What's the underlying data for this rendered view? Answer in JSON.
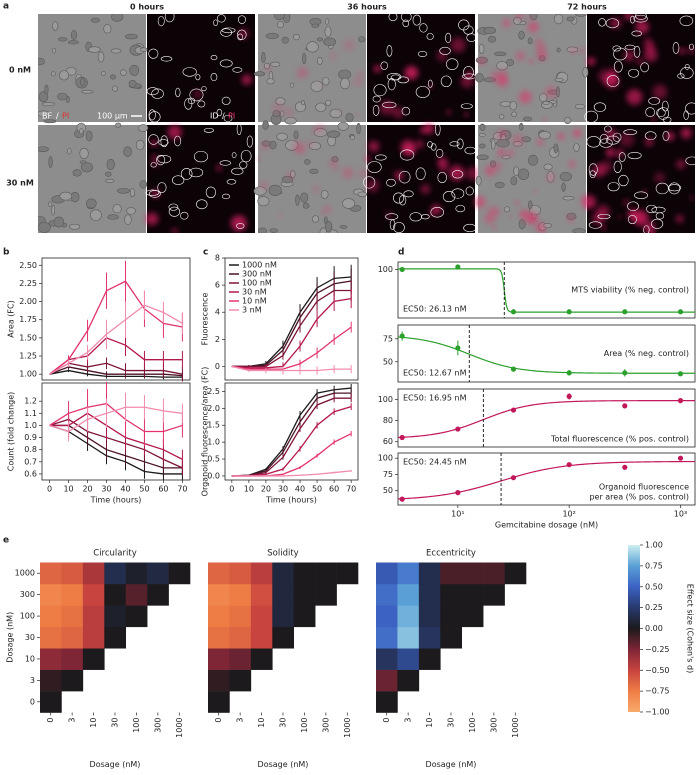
{
  "image_grid": {
    "panel_label": "a",
    "column_titles": [
      "0 hours",
      "36 hours",
      "72 hours"
    ],
    "row_titles": [
      "0 nM",
      "30 nM"
    ],
    "bf_label": [
      "BF",
      "/",
      "PI"
    ],
    "id_label": [
      "ID",
      "/",
      "PI"
    ],
    "scale_bar": "100 µm"
  },
  "chart_data": [
    {
      "type": "line",
      "panel_label": "b",
      "ylabel": "Area (FC)",
      "x": [
        0,
        10,
        20,
        30,
        40,
        50,
        60,
        70
      ],
      "xlim": [
        -4,
        74
      ],
      "ylim": [
        0.92,
        2.6
      ],
      "yticks": [
        {
          "value": 1,
          "label": "1.00"
        },
        {
          "value": 1.25,
          "label": "1.25"
        },
        {
          "value": 1.5,
          "label": "1.50"
        },
        {
          "value": 1.75,
          "label": "1.75"
        },
        {
          "value": 2,
          "label": "2.00"
        },
        {
          "value": 2.25,
          "label": "2.25"
        },
        {
          "value": 2.5,
          "label": "2.50"
        }
      ],
      "series": [
        {
          "color": "#1a1a1a",
          "values": [
            1,
            1.05,
            1,
            0.97,
            0.97,
            0.97,
            0.96,
            0.96
          ],
          "errors": [
            0,
            0.02,
            0.03,
            0.03,
            0.03,
            0.03,
            0.03,
            0.03
          ]
        },
        {
          "color": "#4a1226",
          "values": [
            1,
            1.1,
            1.05,
            1,
            1,
            1,
            1,
            0.98
          ],
          "errors": [
            0,
            0.03,
            0.04,
            0.04,
            0.04,
            0.04,
            0.05,
            0.05
          ]
        },
        {
          "color": "#7d1538",
          "values": [
            1,
            1.15,
            1.1,
            1.15,
            1.05,
            1.05,
            1.05,
            1
          ],
          "errors": [
            0,
            0.04,
            0.06,
            0.08,
            0.1,
            0.1,
            0.1,
            0.1
          ]
        },
        {
          "color": "#b3174d",
          "values": [
            1,
            1.2,
            1.25,
            1.5,
            1.4,
            1.2,
            1.2,
            1.2
          ],
          "errors": [
            0,
            0.05,
            0.1,
            0.15,
            0.15,
            0.12,
            0.12,
            0.12
          ]
        },
        {
          "color": "#e2336f",
          "values": [
            1,
            1.2,
            1.6,
            2.15,
            2.28,
            1.9,
            1.7,
            1.65
          ],
          "errors": [
            0,
            0.06,
            0.15,
            0.25,
            0.28,
            0.25,
            0.2,
            0.2
          ]
        },
        {
          "color": "#f28cab",
          "values": [
            1,
            1.15,
            1.3,
            1.55,
            1.75,
            1.95,
            1.85,
            1.7
          ],
          "errors": [
            0,
            0.05,
            0.1,
            0.2,
            0.25,
            0.2,
            0.15,
            0.15
          ]
        }
      ]
    },
    {
      "type": "line",
      "ylabel": "Count (fold change)",
      "xlabel": "Time (hours)",
      "x": [
        0,
        10,
        20,
        30,
        40,
        50,
        60,
        70
      ],
      "xlim": [
        -4,
        74
      ],
      "xticks": [
        0,
        10,
        20,
        30,
        40,
        50,
        60,
        70
      ],
      "ylim": [
        0.55,
        1.35
      ],
      "yticks": [
        0.6,
        0.7,
        0.8,
        0.9,
        {
          "value": 1,
          "label": "1.0"
        },
        1.1,
        1.2
      ],
      "series": [
        {
          "color": "#1a1a1a",
          "values": [
            1,
            0.95,
            0.85,
            0.75,
            0.7,
            0.62,
            0.6,
            0.6
          ],
          "errors": [
            0,
            0.05,
            0.06,
            0.07,
            0.07,
            0.06,
            0.05,
            0.05
          ]
        },
        {
          "color": "#4a1226",
          "values": [
            1,
            1,
            0.9,
            0.8,
            0.75,
            0.7,
            0.65,
            0.65
          ],
          "errors": [
            0,
            0.06,
            0.07,
            0.08,
            0.08,
            0.07,
            0.06,
            0.06
          ]
        },
        {
          "color": "#7d1538",
          "values": [
            1,
            1.05,
            0.95,
            0.9,
            0.85,
            0.8,
            0.72,
            0.65
          ],
          "errors": [
            0,
            0.06,
            0.08,
            0.09,
            0.09,
            0.08,
            0.07,
            0.06
          ]
        },
        {
          "color": "#b3174d",
          "values": [
            1,
            1,
            1.1,
            1,
            0.9,
            0.85,
            0.8,
            0.72
          ],
          "errors": [
            0,
            0.08,
            0.12,
            0.12,
            0.1,
            0.1,
            0.09,
            0.08
          ]
        },
        {
          "color": "#e2336f",
          "values": [
            1,
            1.1,
            1.15,
            1.18,
            1.05,
            0.95,
            0.95,
            1
          ],
          "errors": [
            0,
            0.1,
            0.15,
            0.18,
            0.15,
            0.12,
            0.12,
            0.1
          ]
        },
        {
          "color": "#f28cab",
          "values": [
            1,
            0.95,
            1.05,
            1.1,
            1.15,
            1.15,
            1.12,
            1.1
          ],
          "errors": [
            0,
            0.08,
            0.1,
            0.12,
            0.12,
            0.1,
            0.1,
            0.08
          ]
        }
      ]
    },
    {
      "type": "line",
      "panel_label": "c",
      "ylabel": "Fluorescence",
      "x": [
        0,
        10,
        20,
        30,
        40,
        50,
        60,
        70
      ],
      "xlim": [
        -4,
        74
      ],
      "ylim": [
        -1,
        8
      ],
      "yticks": [
        0,
        2,
        4,
        6,
        8
      ],
      "legend": "upper left",
      "series": [
        {
          "name": "1000 nM",
          "color": "#1a1a1a",
          "values": [
            0,
            0,
            0.2,
            1.5,
            4,
            5.8,
            6.5,
            6.6
          ],
          "errors": [
            0,
            0.1,
            0.2,
            0.4,
            0.6,
            0.8,
            0.9,
            0.9
          ]
        },
        {
          "name": "300 nM",
          "color": "#4a1226",
          "values": [
            0,
            0,
            0.1,
            1.2,
            3.6,
            5.4,
            6.1,
            6.3
          ],
          "errors": [
            0,
            0.1,
            0.2,
            0.4,
            0.6,
            0.8,
            0.9,
            0.9
          ]
        },
        {
          "name": "100 nM",
          "color": "#7d1538",
          "values": [
            0,
            0,
            0,
            0.8,
            3,
            4.8,
            5.6,
            5.6
          ],
          "errors": [
            0,
            0.1,
            0.2,
            0.3,
            0.5,
            0.7,
            0.8,
            0.8
          ]
        },
        {
          "name": "30 nM",
          "color": "#b3174d",
          "values": [
            0,
            -0.1,
            -0.1,
            0,
            1.5,
            3.5,
            4.8,
            5
          ],
          "errors": [
            0,
            0.1,
            0.2,
            0.3,
            0.4,
            0.6,
            0.7,
            0.7
          ]
        },
        {
          "name": "10 nM",
          "color": "#e2336f",
          "values": [
            0,
            -0.2,
            -0.2,
            -0.2,
            0.2,
            1,
            2,
            2.9
          ],
          "errors": [
            0,
            0.1,
            0.1,
            0.2,
            0.3,
            0.4,
            0.4,
            0.4
          ]
        },
        {
          "name": "3 nM",
          "color": "#f28cab",
          "values": [
            0,
            -0.3,
            -0.3,
            -0.3,
            -0.3,
            -0.3,
            -0.2,
            -0.2
          ],
          "errors": [
            0,
            0.1,
            0.2,
            0.3,
            0.3,
            0.3,
            0.3,
            0.3
          ]
        }
      ]
    },
    {
      "type": "line",
      "ylabel": "Organoid fluorescence/area (FC)",
      "xlabel": "Time (hours)",
      "x": [
        0,
        10,
        20,
        30,
        40,
        50,
        60,
        70
      ],
      "xlim": [
        -4,
        74
      ],
      "xticks": [
        0,
        10,
        20,
        30,
        40,
        50,
        60,
        70
      ],
      "ylim": [
        -0.12,
        2.75
      ],
      "yticks": [
        {
          "value": 0,
          "label": "0.0"
        },
        0.5,
        {
          "value": 1,
          "label": "1.0"
        },
        1.5,
        {
          "value": 2,
          "label": "2.0"
        },
        2.5
      ],
      "series": [
        {
          "color": "#1a1a1a",
          "values": [
            0,
            0.02,
            0.2,
            0.8,
            1.8,
            2.45,
            2.55,
            2.6
          ],
          "errors": [
            0,
            0.01,
            0.03,
            0.08,
            0.12,
            0.12,
            0.12,
            0.12
          ]
        },
        {
          "color": "#4a1226",
          "values": [
            0,
            0.02,
            0.15,
            0.7,
            1.6,
            2.3,
            2.45,
            2.45
          ],
          "errors": [
            0,
            0.01,
            0.03,
            0.08,
            0.12,
            0.12,
            0.12,
            0.12
          ]
        },
        {
          "color": "#7d1538",
          "values": [
            0,
            0.01,
            0.1,
            0.55,
            1.4,
            2.1,
            2.3,
            2.3
          ],
          "errors": [
            0,
            0.01,
            0.03,
            0.07,
            0.1,
            0.12,
            0.12,
            0.12
          ]
        },
        {
          "color": "#b3174d",
          "values": [
            0,
            0,
            0.05,
            0.2,
            0.8,
            1.5,
            1.9,
            2.05
          ],
          "errors": [
            0,
            0.01,
            0.02,
            0.05,
            0.08,
            0.1,
            0.1,
            0.1
          ]
        },
        {
          "color": "#e2336f",
          "values": [
            0,
            0,
            0,
            0.05,
            0.25,
            0.6,
            1,
            1.25
          ],
          "errors": [
            0,
            0.01,
            0.01,
            0.02,
            0.04,
            0.06,
            0.08,
            0.08
          ]
        },
        {
          "color": "#f28cab",
          "values": [
            0,
            0,
            0,
            0,
            0.02,
            0.05,
            0.1,
            0.15
          ],
          "errors": [
            0,
            0.01,
            0.01,
            0.01,
            0.02,
            0.02,
            0.03,
            0.03
          ]
        }
      ]
    },
    {
      "type": "dose_response",
      "panel_label": "d",
      "label": [
        "MTS viability (% neg. control)"
      ],
      "ec50_label": "EC50: 26.13 nM",
      "fit": {
        "start": 101,
        "end": 31.5,
        "ec50": 26.13,
        "hill": 40
      },
      "x": [
        3.16,
        10,
        31.6,
        100,
        316,
        1000
      ],
      "values": [
        100,
        104,
        32,
        32,
        32,
        32
      ],
      "errors": [
        4,
        1,
        1,
        1,
        1,
        1
      ],
      "color": "#2ca02c",
      "xscale": "log",
      "xlim": [
        2.9,
        1350
      ],
      "ylim": [
        22,
        112
      ],
      "yticks": [
        100
      ],
      "ec50_corner": "lower left",
      "label_corner": "right"
    },
    {
      "type": "dose_response",
      "label": [
        "Area (% neg. control)"
      ],
      "ec50_label": "EC50: 12.67 nM",
      "fit": {
        "start": 79,
        "end": 37.5,
        "ec50": 12.67,
        "hill": 2
      },
      "x": [
        3.16,
        10,
        31.6,
        100,
        316,
        1000
      ],
      "values": [
        78,
        65,
        42,
        38,
        38,
        37
      ],
      "errors": [
        5,
        8,
        2,
        3,
        4,
        2
      ],
      "color": "#2ca02c",
      "xscale": "log",
      "xlim": [
        2.9,
        1350
      ],
      "ylim": [
        28,
        90
      ],
      "yticks": [
        50,
        75
      ],
      "ec50_corner": "lower left",
      "label_corner": "right"
    },
    {
      "type": "dose_response",
      "label": [
        "Total fluorescence (% pos. control)"
      ],
      "ec50_label": "EC50: 16.95 nM",
      "fit": {
        "start": 63,
        "end": 99,
        "ec50": 16.95,
        "hill": 2
      },
      "x": [
        3.16,
        10,
        31.6,
        100,
        316,
        1000
      ],
      "values": [
        64,
        72,
        90,
        103,
        94,
        99
      ],
      "errors": [
        1,
        1,
        2,
        3,
        2,
        1
      ],
      "color": "#c2185b",
      "xscale": "log",
      "xlim": [
        2.9,
        1350
      ],
      "ylim": [
        55,
        110
      ],
      "yticks": [
        60,
        80,
        100
      ],
      "ec50_corner": "upper left",
      "label_corner": "lower right"
    },
    {
      "type": "dose_response",
      "label": [
        "Organoid fluorescence",
        "per area (% pos. control)"
      ],
      "ec50_label": "EC50: 24.45 nM",
      "fit": {
        "start": 35,
        "end": 95,
        "ec50": 24.45,
        "hill": 1.5
      },
      "x": [
        3.16,
        10,
        31.6,
        100,
        316,
        1000
      ],
      "values": [
        37,
        47,
        70,
        90,
        86,
        100
      ],
      "errors": [
        1,
        1,
        1,
        1,
        1,
        1
      ],
      "color": "#c2185b",
      "xscale": "log",
      "xlim": [
        2.9,
        1350
      ],
      "ylim": [
        28,
        108
      ],
      "yticks": [
        50,
        75,
        100
      ],
      "ec50_corner": "upper left",
      "label_corner": "lower right",
      "xlabel": "Gemcitabine dosage (nM)",
      "xticks": [
        {
          "value": 10,
          "label": "10¹"
        },
        {
          "value": 100,
          "label": "10²"
        },
        {
          "value": 1000,
          "label": "10³"
        }
      ]
    },
    {
      "type": "heatmap",
      "panel_label": "e",
      "title": "Circularity",
      "xlabel": "Dosage (nM)",
      "ylabel": "Dosage (nM)",
      "categories": [
        "0",
        "3",
        "10",
        "30",
        "100",
        "300",
        "1000"
      ],
      "matrix": [
        [
          0
        ],
        [
          -0.05,
          0
        ],
        [
          -0.3,
          -0.25,
          0
        ],
        [
          -0.7,
          -0.65,
          -0.45,
          0
        ],
        [
          -0.75,
          -0.7,
          -0.45,
          0.05,
          0
        ],
        [
          -0.8,
          -0.75,
          -0.5,
          0,
          -0.15,
          0
        ],
        [
          -0.65,
          -0.6,
          -0.4,
          0.15,
          0.05,
          0.12,
          0
        ]
      ]
    },
    {
      "type": "heatmap",
      "title": "Solidity",
      "xlabel": "Dosage (nM)",
      "categories": [
        "0",
        "3",
        "10",
        "30",
        "100",
        "300",
        "1000"
      ],
      "matrix": [
        [
          0
        ],
        [
          -0.05,
          0
        ],
        [
          -0.25,
          -0.2,
          0
        ],
        [
          -0.7,
          -0.65,
          -0.5,
          0
        ],
        [
          -0.75,
          -0.7,
          -0.5,
          0.1,
          0
        ],
        [
          -0.8,
          -0.75,
          -0.55,
          0.1,
          0,
          0
        ],
        [
          -0.65,
          -0.6,
          -0.45,
          0.1,
          0,
          0,
          0
        ]
      ]
    },
    {
      "type": "heatmap",
      "title": "Eccentricity",
      "xlabel": "Dosage (nM)",
      "categories": [
        "0",
        "3",
        "10",
        "30",
        "100",
        "300",
        "1000"
      ],
      "matrix": [
        [
          0
        ],
        [
          -0.2,
          0
        ],
        [
          0.2,
          0.35,
          0
        ],
        [
          0.55,
          0.85,
          0.2,
          0
        ],
        [
          0.5,
          0.8,
          0.15,
          0,
          0
        ],
        [
          0.55,
          0.75,
          0.15,
          0,
          0,
          0
        ],
        [
          0.45,
          0.6,
          0.15,
          -0.12,
          -0.12,
          -0.12,
          0
        ]
      ]
    },
    {
      "type": "colorbar",
      "label": "Effect size (Cohen's d)",
      "clim": [
        -1,
        1
      ],
      "colors": [
        "#f8ab6d",
        "#ee7d45",
        "#c8443f",
        "#7e2536",
        "#1c1a1c",
        "#283a6e",
        "#3c62c4",
        "#5aa0d6",
        "#cdeff0"
      ],
      "ticks": [
        {
          "value": -1,
          "label": "−1.00"
        },
        {
          "value": -0.75,
          "label": "−0.75"
        },
        {
          "value": -0.5,
          "label": "−0.50"
        },
        {
          "value": -0.25,
          "label": "−0.25"
        },
        {
          "value": 0,
          "label": "0.00"
        },
        {
          "value": 0.25,
          "label": "0.25"
        },
        {
          "value": 0.5,
          "label": "0.50"
        },
        {
          "value": 0.75,
          "label": "0.75"
        },
        {
          "value": 1,
          "label": "1.00"
        }
      ]
    }
  ]
}
